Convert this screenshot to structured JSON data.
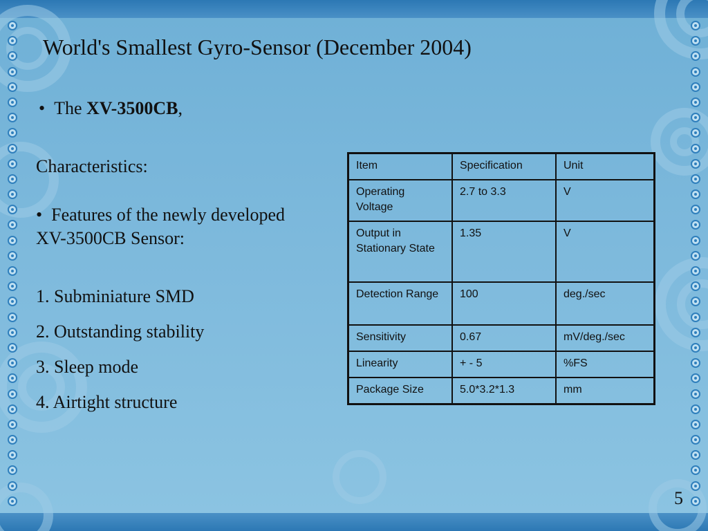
{
  "slide": {
    "title": "World's Smallest Gyro-Sensor (December 2004)",
    "bullet_prefix": "The ",
    "bullet_model": "XV-3500CB",
    "bullet_suffix": ",",
    "characteristics_label": "Characteristics:",
    "features_heading": "Features of the newly developed XV-3500CB Sensor:",
    "features": [
      "1. Subminiature SMD",
      "2. Outstanding stability",
      "3. Sleep mode",
      "4. Airtight structure"
    ],
    "page_number": "5"
  },
  "spec_table": {
    "headers": [
      "Item",
      "Specification",
      "Unit"
    ],
    "rows": [
      [
        "Operating Voltage",
        "2.7 to 3.3",
        "V"
      ],
      [
        "Output in Stationary State",
        "1.35",
        "V"
      ],
      [
        "Detection Range",
        "100",
        "deg./sec"
      ],
      [
        "Sensitivity",
        "0.67",
        "mV/deg./sec"
      ],
      [
        "Linearity",
        "+ - 5",
        "%FS"
      ],
      [
        "Package Size",
        "5.0*3.2*1.3",
        "mm"
      ]
    ]
  },
  "colors": {
    "background": "#7db9dc",
    "band": "#2c78b4",
    "text": "#111111"
  }
}
